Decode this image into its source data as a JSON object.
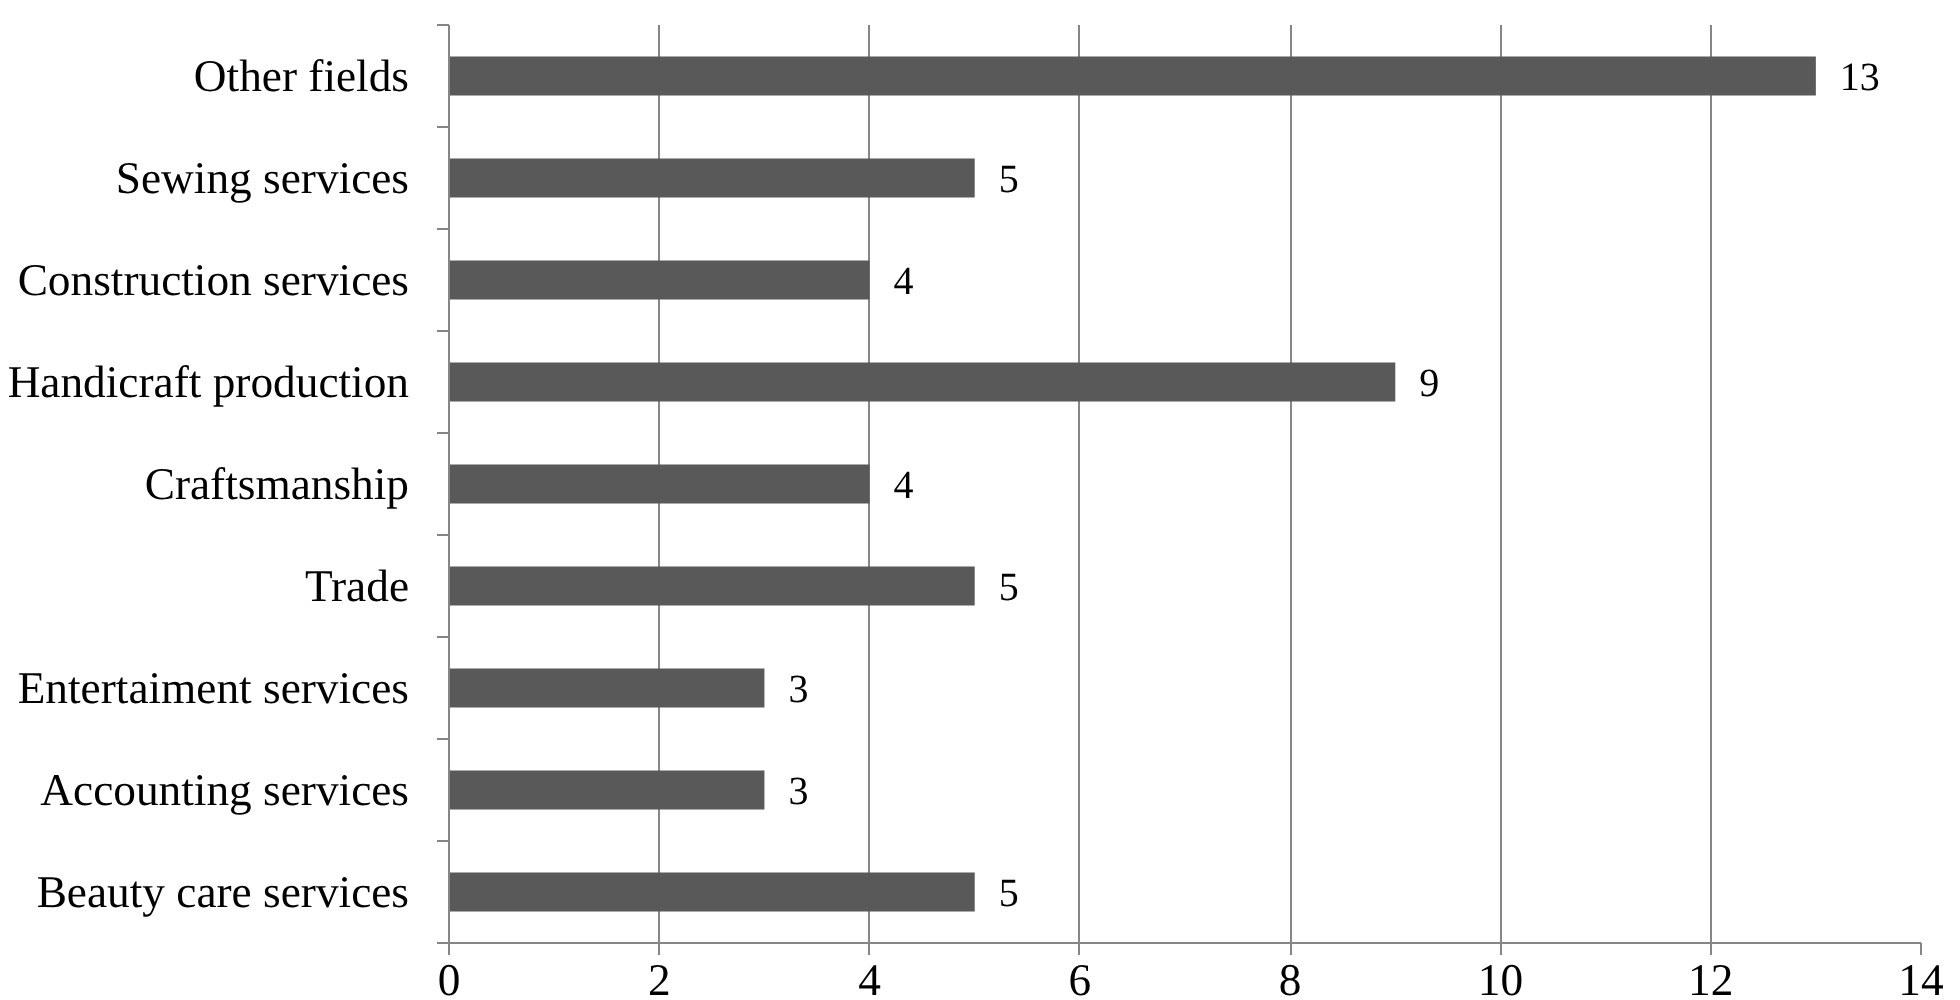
{
  "chart_data": {
    "type": "bar",
    "orientation": "horizontal",
    "categories": [
      "Other fields",
      "Sewing services",
      "Construction services",
      "Handicraft production",
      "Craftsmanship",
      "Trade",
      "Entertaiment services",
      "Accounting services",
      "Beauty care services"
    ],
    "values": [
      13,
      5,
      4,
      9,
      4,
      5,
      3,
      3,
      5
    ],
    "color": "#595959",
    "xlim": [
      0,
      14
    ],
    "xticks": [
      0,
      2,
      4,
      6,
      8,
      10,
      12,
      14
    ],
    "grid": "x",
    "data_labels": true
  }
}
